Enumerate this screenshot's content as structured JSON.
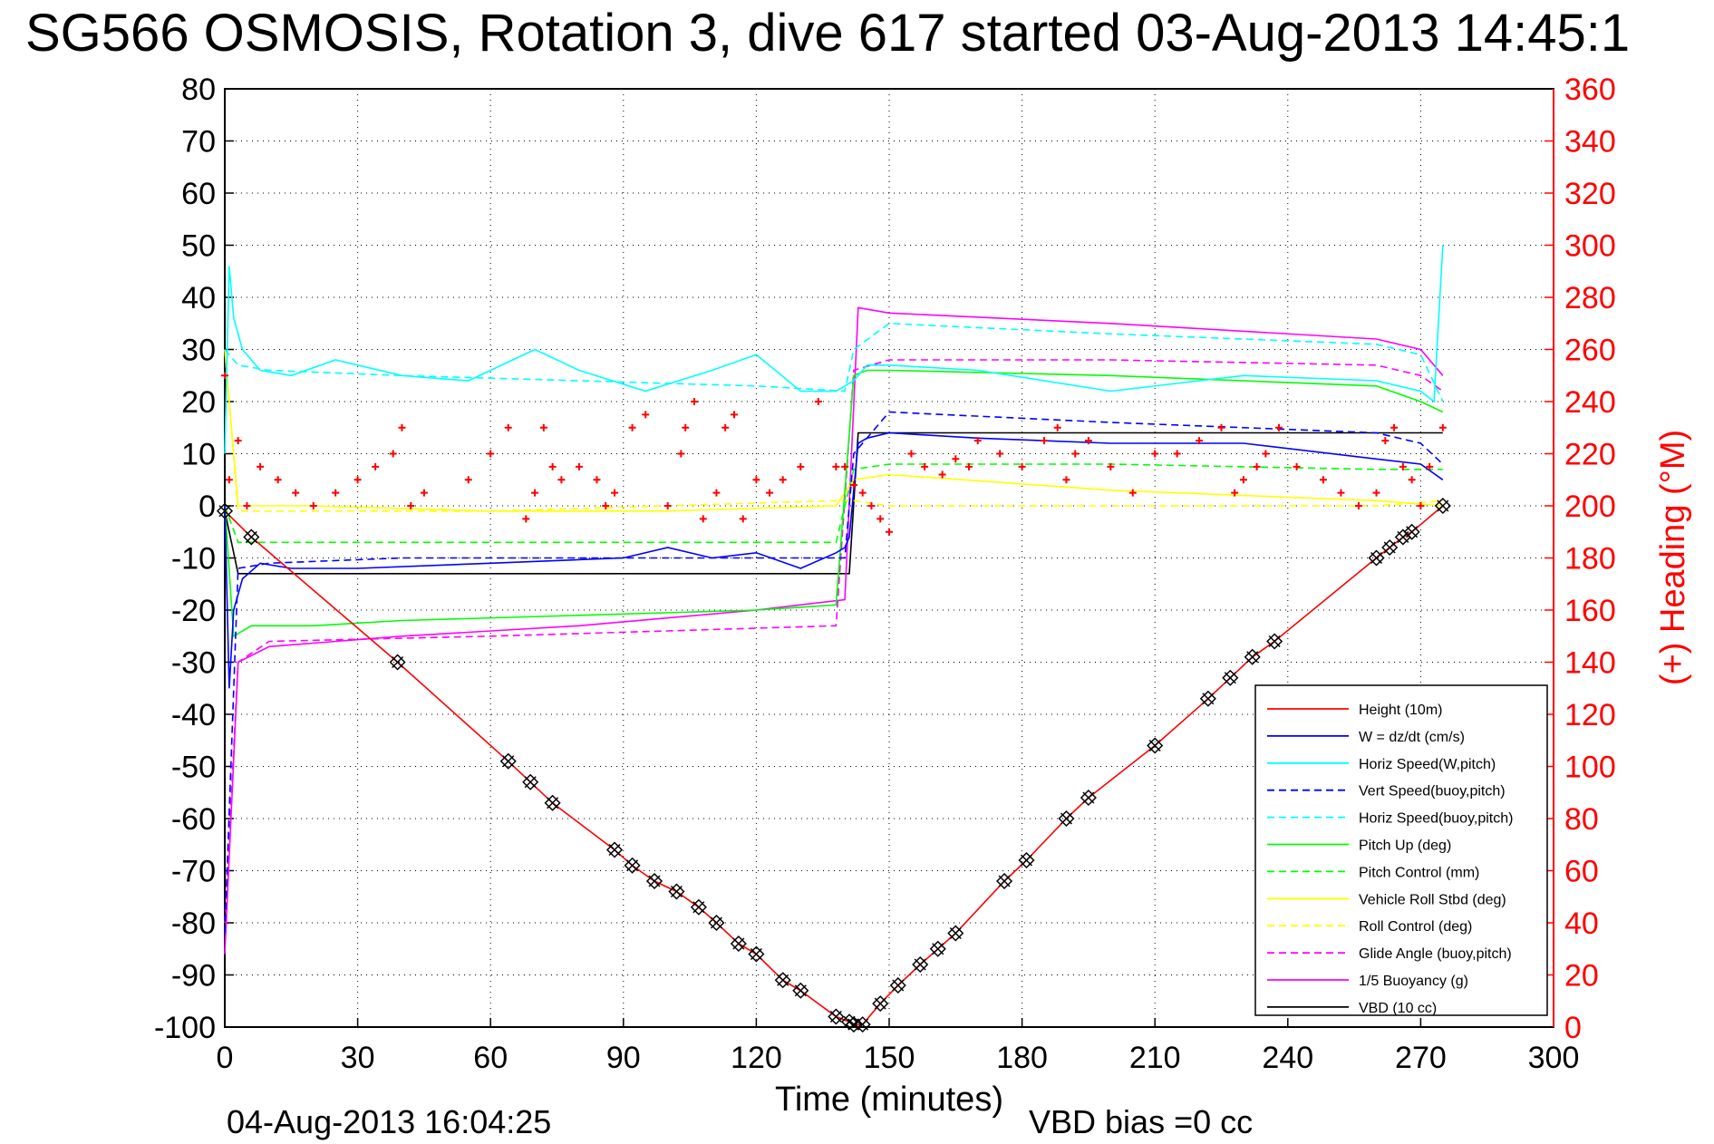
{
  "title": "SG566 OSMOSIS, Rotation 3, dive 617 started 03-Aug-2013 14:45:1",
  "footer": {
    "timestamp": "04-Aug-2013 16:04:25",
    "vbd_bias": "VBD bias =0 cc"
  },
  "colors": {
    "height": "#ff0000",
    "w": "#0000ff",
    "horiz_speed": "#00ffff",
    "pitch": "#00ff00",
    "roll": "#ffff00",
    "glide": "#ff00ff",
    "vbd": "#000000",
    "heading": "#ff0000"
  },
  "chart_data": {
    "type": "line",
    "title": "SG566 OSMOSIS, Rotation 3, dive 617 started 03-Aug-2013 14:45:1",
    "xlabel": "Time (minutes)",
    "ylabel_right": "(+) Heading (°M)",
    "xlim": [
      0,
      300
    ],
    "ylim": [
      -100,
      80
    ],
    "ylim_right": [
      0,
      360
    ],
    "x_ticks": [
      "0",
      "30",
      "60",
      "90",
      "120",
      "150",
      "180",
      "210",
      "240",
      "270",
      "300"
    ],
    "y_ticks": [
      "80",
      "70",
      "60",
      "50",
      "40",
      "30",
      "20",
      "10",
      "0",
      "-10",
      "-20",
      "-30",
      "-40",
      "-50",
      "-60",
      "-70",
      "-80",
      "-90",
      "-100"
    ],
    "y_right_ticks": [
      "360",
      "340",
      "320",
      "300",
      "280",
      "260",
      "240",
      "220",
      "200",
      "180",
      "160",
      "140",
      "120",
      "100",
      "80",
      "60",
      "40",
      "20",
      "0"
    ],
    "grid": true,
    "legend_position": "bottom-right",
    "legend": [
      "Height (10m)",
      "W = dz/dt (cm/s)",
      "Horiz Speed(W,pitch)",
      "Vert Speed(buoy,pitch)",
      "Horiz Speed(buoy,pitch)",
      "Pitch Up (deg)",
      "Pitch Control (mm)",
      "Vehicle Roll Stbd (deg)",
      "Roll Control (deg)",
      "Glide Angle (buoy,pitch)",
      "1/5 Buoyancy (g)",
      "VBD (10 cc)"
    ],
    "series": [
      {
        "name": "Height (10m)",
        "x": [
          0,
          6,
          39,
          64,
          69,
          74,
          88,
          92,
          97,
          102,
          107,
          111,
          116,
          120,
          126,
          130,
          138,
          141,
          142,
          144,
          148,
          152,
          157,
          161,
          165,
          176,
          181,
          190,
          195,
          210,
          222,
          227,
          232,
          237,
          260,
          263,
          266,
          268,
          275
        ],
        "y": [
          -1,
          -6,
          -30,
          -49,
          -53,
          -57,
          -66,
          -69,
          -72,
          -74,
          -77,
          -80,
          -84,
          -86,
          -91,
          -93,
          -98,
          -99,
          -99.5,
          -99.5,
          -95.5,
          -92,
          -88,
          -85,
          -82,
          -72,
          -68,
          -60,
          -56,
          -46,
          -37,
          -33,
          -29,
          -26,
          -10,
          -8,
          -6,
          -5,
          0
        ]
      },
      {
        "name": "W = dz/dt (cm/s)",
        "x": [
          0,
          1,
          2,
          4,
          8,
          15,
          30,
          60,
          90,
          100,
          110,
          120,
          130,
          138,
          140,
          141,
          143,
          145,
          150,
          170,
          200,
          230,
          260,
          270,
          275
        ],
        "y": [
          0,
          -35,
          -20,
          -14,
          -11,
          -12,
          -12,
          -11,
          -10,
          -8,
          -10,
          -9,
          -12,
          -9,
          -8,
          -6,
          12,
          13,
          14,
          13,
          12,
          12,
          9,
          8,
          5
        ]
      },
      {
        "name": "Horiz Speed(W,pitch)",
        "x": [
          0,
          1,
          2,
          4,
          8,
          15,
          25,
          40,
          55,
          70,
          80,
          95,
          110,
          120,
          130,
          138,
          142,
          145,
          150,
          170,
          200,
          230,
          260,
          270,
          273,
          275
        ],
        "y": [
          10,
          46,
          36,
          30,
          26,
          25,
          28,
          25,
          24,
          30,
          26,
          22,
          26,
          29,
          22,
          22,
          24,
          27,
          27,
          26,
          22,
          25,
          24,
          22,
          20,
          50
        ]
      },
      {
        "name": "Vert Speed(buoy,pitch)",
        "x": [
          0,
          3,
          10,
          40,
          80,
          120,
          140,
          142,
          150,
          200,
          260,
          270,
          275
        ],
        "y": [
          -82,
          -12,
          -11,
          -10,
          -10,
          -10,
          -10,
          10,
          18,
          16,
          14,
          12,
          8
        ]
      },
      {
        "name": "Horiz Speed(buoy,pitch)",
        "x": [
          0,
          3,
          10,
          40,
          80,
          120,
          140,
          142,
          150,
          200,
          260,
          270,
          275
        ],
        "y": [
          30,
          27,
          26,
          25,
          24,
          23,
          22,
          30,
          35,
          33,
          31,
          29,
          20
        ]
      },
      {
        "name": "Pitch Up (deg)",
        "x": [
          0,
          2,
          6,
          20,
          40,
          80,
          120,
          138,
          142,
          145,
          150,
          200,
          260,
          270,
          275
        ],
        "y": [
          0,
          -25,
          -23,
          -23,
          -22,
          -21,
          -20,
          -19,
          25,
          26,
          26,
          25,
          23,
          20,
          18
        ]
      },
      {
        "name": "Pitch Control (mm)",
        "x": [
          0,
          3,
          10,
          60,
          100,
          138,
          142,
          150,
          200,
          260,
          275
        ],
        "y": [
          0,
          -7,
          -7,
          -7,
          -7,
          -7,
          7,
          8,
          8,
          7,
          7
        ]
      },
      {
        "name": "Vehicle Roll Stbd (deg)",
        "x": [
          0,
          3,
          20,
          60,
          100,
          138,
          142,
          150,
          200,
          260,
          275
        ],
        "y": [
          30,
          0,
          0,
          -1,
          -1,
          0,
          5,
          6,
          3,
          1,
          0
        ]
      },
      {
        "name": "Roll Control (deg)",
        "x": [
          0,
          3,
          20,
          60,
          100,
          138,
          142,
          150,
          200,
          260,
          275
        ],
        "y": [
          30,
          -1,
          -1,
          -1,
          0,
          1,
          1,
          0,
          0,
          0,
          1
        ]
      },
      {
        "name": "Glide Angle (buoy,pitch)",
        "x": [
          0,
          3,
          10,
          60,
          100,
          138,
          142,
          150,
          200,
          260,
          270,
          275
        ],
        "y": [
          -80,
          -30,
          -26,
          -25,
          -24,
          -23,
          26,
          28,
          28,
          27,
          25,
          22
        ]
      },
      {
        "name": "1/5 Buoyancy (g)",
        "x": [
          0,
          3,
          10,
          40,
          80,
          120,
          140,
          143,
          150,
          200,
          260,
          270,
          275
        ],
        "y": [
          -86,
          -30,
          -27,
          -25,
          -23,
          -20,
          -18,
          38,
          37,
          35,
          32,
          30,
          25
        ]
      },
      {
        "name": "VBD (10 cc)",
        "x": [
          0,
          3,
          10,
          60,
          100,
          141,
          143,
          200,
          260,
          275
        ],
        "y": [
          -1,
          -13,
          -13,
          -13,
          -13,
          -13,
          14,
          14,
          14,
          14
        ]
      },
      {
        "name": "(+) Heading (°M)",
        "axis": "right",
        "x": [
          0,
          1,
          3,
          5,
          8,
          12,
          16,
          20,
          25,
          30,
          34,
          38,
          40,
          42,
          45,
          55,
          60,
          64,
          68,
          70,
          72,
          74,
          76,
          80,
          84,
          86,
          88,
          92,
          95,
          100,
          103,
          104,
          106,
          108,
          111,
          113,
          115,
          117,
          120,
          123,
          126,
          130,
          134,
          138,
          140,
          142,
          144,
          146,
          148,
          150,
          155,
          158,
          162,
          165,
          168,
          170,
          175,
          180,
          185,
          188,
          190,
          192,
          195,
          200,
          205,
          210,
          215,
          220,
          225,
          228,
          230,
          233,
          235,
          238,
          242,
          248,
          252,
          256,
          260,
          262,
          264,
          266,
          268,
          270,
          272,
          275
        ],
        "y": [
          250,
          210,
          225,
          200,
          215,
          210,
          205,
          200,
          205,
          210,
          215,
          220,
          230,
          200,
          205,
          210,
          220,
          230,
          195,
          205,
          230,
          215,
          210,
          215,
          210,
          200,
          205,
          230,
          235,
          200,
          220,
          230,
          240,
          195,
          205,
          230,
          235,
          195,
          210,
          205,
          210,
          215,
          240,
          215,
          215,
          208,
          205,
          200,
          195,
          190,
          220,
          215,
          212,
          218,
          215,
          225,
          220,
          215,
          225,
          230,
          210,
          220,
          225,
          215,
          205,
          220,
          220,
          225,
          230,
          205,
          210,
          215,
          220,
          230,
          215,
          210,
          205,
          200,
          205,
          225,
          230,
          215,
          210,
          200,
          215,
          230
        ]
      }
    ]
  }
}
